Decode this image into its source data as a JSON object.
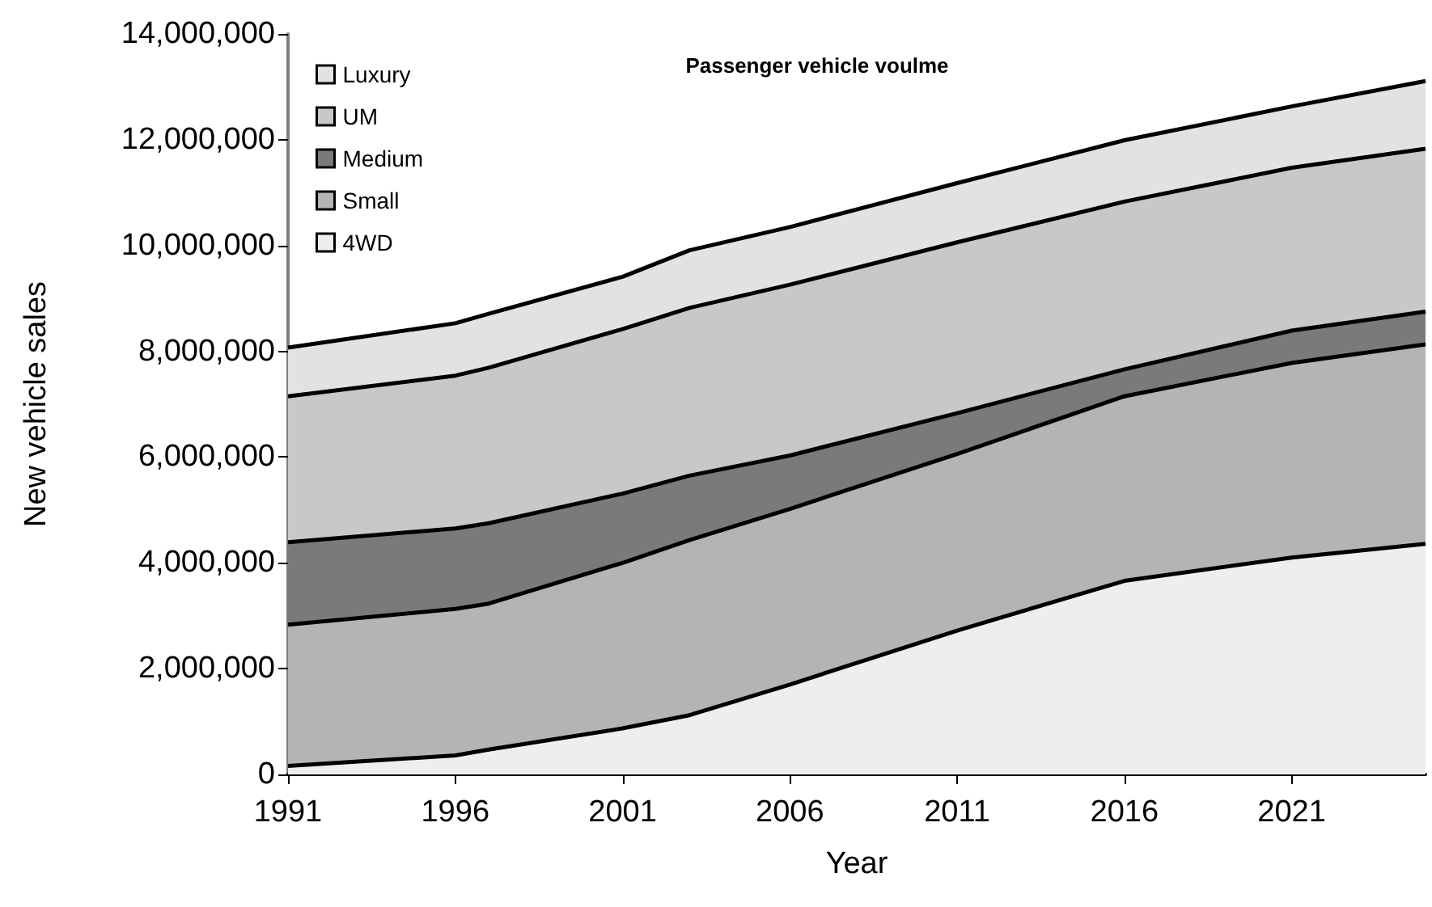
{
  "chart_data": {
    "type": "area",
    "stacked": true,
    "title": "Passenger vehicle voulme",
    "xlabel": "Year",
    "ylabel": "New vehicle sales",
    "x": [
      1991,
      1996,
      1997,
      2001,
      2003,
      2006,
      2011,
      2016,
      2021,
      2025
    ],
    "xlim": [
      1991,
      2025
    ],
    "xticks": [
      1991,
      1996,
      2001,
      2006,
      2011,
      2016,
      2021
    ],
    "ylim": [
      0,
      14000000
    ],
    "yticks": [
      {
        "value": 0,
        "label": "0"
      },
      {
        "value": 2000000,
        "label": "2,000,000"
      },
      {
        "value": 4000000,
        "label": "4,000,000"
      },
      {
        "value": 6000000,
        "label": "6,000,000"
      },
      {
        "value": 8000000,
        "label": "8,000,000"
      },
      {
        "value": 10000000,
        "label": "10,000,000"
      },
      {
        "value": 12000000,
        "label": "12,000,000"
      },
      {
        "value": 14000000,
        "label": "14,000,000"
      }
    ],
    "series": [
      {
        "name": "4WD",
        "color": "#eeeeee",
        "values": [
          160000,
          360000,
          470000,
          870000,
          1120000,
          1700000,
          2720000,
          3660000,
          4100000,
          4360000
        ]
      },
      {
        "name": "Small",
        "color": "#b4b4b4",
        "values": [
          2670000,
          2770000,
          2760000,
          3130000,
          3310000,
          3320000,
          3340000,
          3490000,
          3680000,
          3770000
        ]
      },
      {
        "name": "Medium",
        "color": "#7a7a7a",
        "values": [
          1560000,
          1520000,
          1520000,
          1310000,
          1220000,
          1010000,
          770000,
          510000,
          610000,
          620000
        ]
      },
      {
        "name": "UM",
        "color": "#c8c8c8",
        "values": [
          2760000,
          2890000,
          2940000,
          3110000,
          3170000,
          3230000,
          3230000,
          3170000,
          3080000,
          3080000
        ]
      },
      {
        "name": "Luxury",
        "color": "#e2e2e2",
        "values": [
          920000,
          990000,
          1020000,
          990000,
          1090000,
          1090000,
          1120000,
          1160000,
          1160000,
          1280000
        ]
      }
    ],
    "legend": "top left",
    "grid": false,
    "marker": "none",
    "line_style": "solid"
  }
}
